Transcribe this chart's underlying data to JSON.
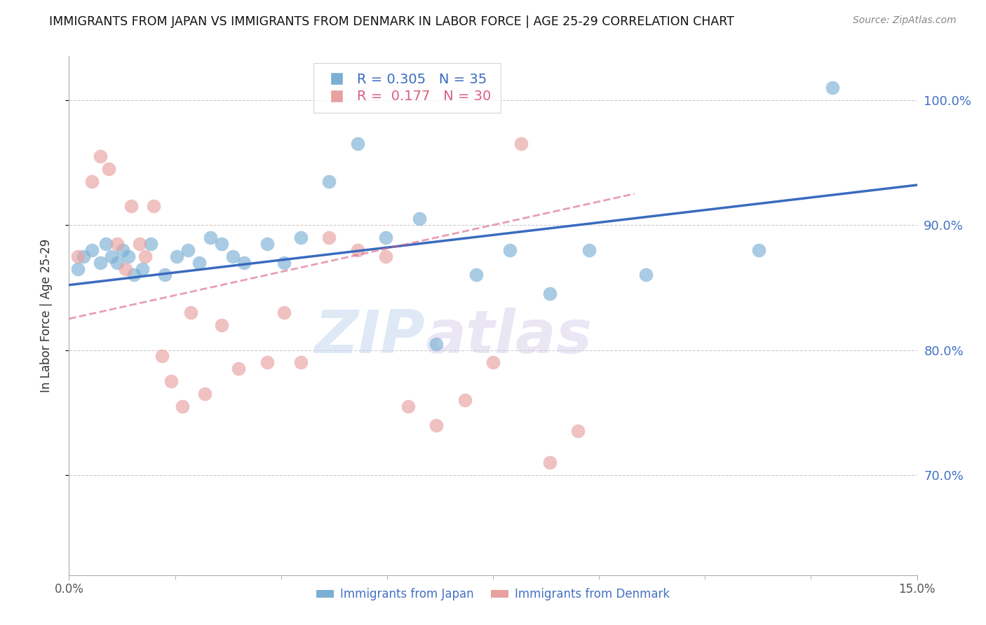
{
  "title": "IMMIGRANTS FROM JAPAN VS IMMIGRANTS FROM DENMARK IN LABOR FORCE | AGE 25-29 CORRELATION CHART",
  "source": "Source: ZipAtlas.com",
  "ylabel": "In Labor Force | Age 25-29",
  "y_ticks": [
    70.0,
    80.0,
    90.0,
    100.0
  ],
  "y_tick_labels": [
    "70.0%",
    "80.0%",
    "90.0%",
    "100.0%"
  ],
  "xmin": 0.0,
  "xmax": 15.0,
  "ymin": 62.0,
  "ymax": 103.5,
  "japan_R": 0.305,
  "japan_N": 35,
  "denmark_R": 0.177,
  "denmark_N": 30,
  "japan_color": "#7bafd4",
  "denmark_color": "#e8a0a0",
  "japan_line_color": "#3a6bbf",
  "denmark_line_color": "#d96080",
  "japan_scatter_x": [
    0.15,
    0.25,
    0.4,
    0.55,
    0.65,
    0.75,
    0.85,
    0.95,
    1.05,
    1.15,
    1.3,
    1.45,
    1.7,
    1.9,
    2.1,
    2.3,
    2.5,
    2.7,
    2.9,
    3.1,
    3.5,
    3.8,
    4.1,
    4.6,
    5.1,
    5.6,
    6.2,
    6.5,
    7.2,
    7.8,
    8.5,
    9.2,
    10.2,
    12.2,
    13.5
  ],
  "japan_scatter_y": [
    86.5,
    87.5,
    88.0,
    87.0,
    88.5,
    87.5,
    87.0,
    88.0,
    87.5,
    86.0,
    86.5,
    88.5,
    86.0,
    87.5,
    88.0,
    87.0,
    89.0,
    88.5,
    87.5,
    87.0,
    88.5,
    87.0,
    89.0,
    93.5,
    96.5,
    89.0,
    90.5,
    80.5,
    86.0,
    88.0,
    84.5,
    88.0,
    86.0,
    88.0,
    101.0
  ],
  "denmark_scatter_x": [
    0.15,
    0.4,
    0.55,
    0.7,
    0.85,
    1.0,
    1.1,
    1.25,
    1.35,
    1.5,
    1.65,
    1.8,
    2.0,
    2.15,
    2.4,
    2.7,
    3.0,
    3.5,
    3.8,
    4.1,
    4.6,
    5.1,
    5.6,
    6.0,
    6.5,
    7.0,
    7.5,
    8.0,
    8.5,
    9.0
  ],
  "denmark_scatter_y": [
    87.5,
    93.5,
    95.5,
    94.5,
    88.5,
    86.5,
    91.5,
    88.5,
    87.5,
    91.5,
    79.5,
    77.5,
    75.5,
    83.0,
    76.5,
    82.0,
    78.5,
    79.0,
    83.0,
    79.0,
    89.0,
    88.0,
    87.5,
    75.5,
    74.0,
    76.0,
    79.0,
    96.5,
    71.0,
    73.5
  ],
  "japan_line_x": [
    0.0,
    15.0
  ],
  "japan_line_y": [
    85.2,
    93.2
  ],
  "denmark_line_x": [
    0.0,
    10.0
  ],
  "denmark_line_y": [
    82.5,
    92.5
  ],
  "watermark_part1": "ZIP",
  "watermark_part2": "atlas"
}
